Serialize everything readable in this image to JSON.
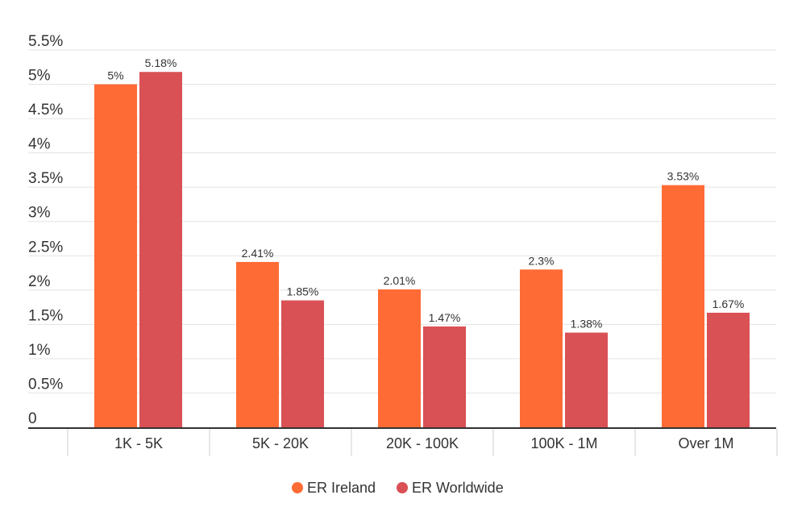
{
  "chart_data": {
    "type": "bar",
    "title": "",
    "xlabel": "",
    "ylabel": "",
    "categories": [
      "1K - 5K",
      "5K - 20K",
      "20K - 100K",
      "100K - 1M",
      "Over 1M"
    ],
    "series": [
      {
        "name": "ER Ireland",
        "color": "#ff6b35",
        "values": [
          5,
          2.41,
          2.01,
          2.3,
          3.53
        ],
        "labels": [
          "5%",
          "2.41%",
          "2.01%",
          "2.3%",
          "3.53%"
        ]
      },
      {
        "name": "ER Worldwide",
        "color": "#d95055",
        "values": [
          5.18,
          1.85,
          1.47,
          1.38,
          1.67
        ],
        "labels": [
          "5.18%",
          "1.85%",
          "1.47%",
          "1.38%",
          "1.67%"
        ]
      }
    ],
    "ylim": [
      0,
      5.5
    ],
    "yticks": [
      0,
      0.5,
      1,
      1.5,
      2,
      2.5,
      3,
      3.5,
      4,
      4.5,
      5,
      5.5
    ],
    "ytick_labels": [
      "0",
      "0.5%",
      "1%",
      "1.5%",
      "2%",
      "2.5%",
      "3%",
      "3.5%",
      "4%",
      "4.5%",
      "5%",
      "5.5%"
    ],
    "grid": true,
    "legend_position": "bottom"
  }
}
